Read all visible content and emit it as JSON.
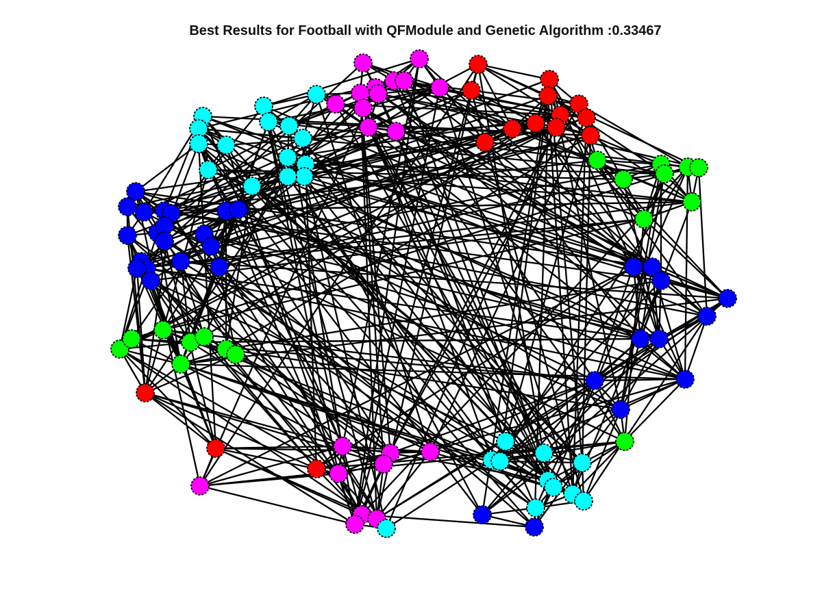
{
  "figure": {
    "title": "Best Results for Football with QFModule and Genetic Algorithm :0.33467"
  },
  "colors": {
    "red": "#ff0000",
    "magenta": "#ff00ff",
    "cyan": "#00ffff",
    "green": "#00ff00",
    "blue": "#0000ff",
    "edge": "#000000"
  },
  "nodes": [
    {
      "id": 0,
      "community": "magenta"
    },
    {
      "id": 1,
      "community": "magenta"
    },
    {
      "id": 2,
      "community": "magenta"
    },
    {
      "id": 3,
      "community": "magenta"
    },
    {
      "id": 4,
      "community": "magenta"
    },
    {
      "id": 5,
      "community": "magenta"
    },
    {
      "id": 6,
      "community": "magenta"
    },
    {
      "id": 7,
      "community": "magenta"
    },
    {
      "id": 8,
      "community": "magenta"
    },
    {
      "id": 9,
      "community": "magenta"
    },
    {
      "id": 10,
      "community": "magenta"
    },
    {
      "id": 11,
      "community": "magenta"
    },
    {
      "id": 12,
      "community": "red"
    },
    {
      "id": 13,
      "community": "red"
    },
    {
      "id": 14,
      "community": "red"
    },
    {
      "id": 15,
      "community": "red"
    },
    {
      "id": 16,
      "community": "red"
    },
    {
      "id": 17,
      "community": "red"
    },
    {
      "id": 18,
      "community": "red"
    },
    {
      "id": 19,
      "community": "red"
    },
    {
      "id": 20,
      "community": "red"
    },
    {
      "id": 21,
      "community": "red"
    },
    {
      "id": 22,
      "community": "red"
    },
    {
      "id": 23,
      "community": "red"
    },
    {
      "id": 24,
      "community": "cyan"
    },
    {
      "id": 25,
      "community": "cyan"
    },
    {
      "id": 26,
      "community": "cyan"
    },
    {
      "id": 27,
      "community": "cyan"
    },
    {
      "id": 28,
      "community": "cyan"
    },
    {
      "id": 29,
      "community": "cyan"
    },
    {
      "id": 30,
      "community": "cyan"
    },
    {
      "id": 31,
      "community": "cyan"
    },
    {
      "id": 32,
      "community": "cyan"
    },
    {
      "id": 33,
      "community": "cyan"
    },
    {
      "id": 34,
      "community": "cyan"
    },
    {
      "id": 35,
      "community": "cyan"
    },
    {
      "id": 36,
      "community": "cyan"
    },
    {
      "id": 37,
      "community": "cyan"
    },
    {
      "id": 38,
      "community": "cyan"
    },
    {
      "id": 39,
      "community": "green"
    },
    {
      "id": 40,
      "community": "green"
    },
    {
      "id": 41,
      "community": "green"
    },
    {
      "id": 42,
      "community": "green"
    },
    {
      "id": 43,
      "community": "green"
    },
    {
      "id": 44,
      "community": "green"
    },
    {
      "id": 45,
      "community": "green"
    },
    {
      "id": 46,
      "community": "green"
    },
    {
      "id": 47,
      "community": "blue"
    },
    {
      "id": 48,
      "community": "blue"
    },
    {
      "id": 49,
      "community": "blue"
    },
    {
      "id": 50,
      "community": "blue"
    },
    {
      "id": 51,
      "community": "blue"
    },
    {
      "id": 52,
      "community": "blue"
    },
    {
      "id": 53,
      "community": "blue"
    },
    {
      "id": 54,
      "community": "blue"
    },
    {
      "id": 55,
      "community": "blue"
    },
    {
      "id": 56,
      "community": "blue"
    },
    {
      "id": 57,
      "community": "blue"
    },
    {
      "id": 58,
      "community": "blue"
    },
    {
      "id": 59,
      "community": "blue"
    },
    {
      "id": 60,
      "community": "blue"
    },
    {
      "id": 61,
      "community": "blue"
    },
    {
      "id": 62,
      "community": "blue"
    },
    {
      "id": 63,
      "community": "blue"
    },
    {
      "id": 64,
      "community": "blue"
    },
    {
      "id": 65,
      "community": "blue"
    },
    {
      "id": 66,
      "community": "blue"
    },
    {
      "id": 67,
      "community": "blue"
    },
    {
      "id": 68,
      "community": "blue"
    },
    {
      "id": 69,
      "community": "blue"
    },
    {
      "id": 70,
      "community": "blue"
    },
    {
      "id": 71,
      "community": "blue"
    },
    {
      "id": 72,
      "community": "blue"
    },
    {
      "id": 73,
      "community": "blue"
    },
    {
      "id": 74,
      "community": "blue"
    },
    {
      "id": 75,
      "community": "blue"
    },
    {
      "id": 76,
      "community": "green"
    },
    {
      "id": 77,
      "community": "green"
    },
    {
      "id": 78,
      "community": "green"
    },
    {
      "id": 79,
      "community": "green"
    },
    {
      "id": 80,
      "community": "green"
    },
    {
      "id": 81,
      "community": "green"
    },
    {
      "id": 82,
      "community": "green"
    },
    {
      "id": 83,
      "community": "green"
    },
    {
      "id": 84,
      "community": "green"
    },
    {
      "id": 85,
      "community": "red"
    },
    {
      "id": 86,
      "community": "red"
    },
    {
      "id": 87,
      "community": "red"
    },
    {
      "id": 88,
      "community": "magenta"
    },
    {
      "id": 89,
      "community": "magenta"
    },
    {
      "id": 90,
      "community": "magenta"
    },
    {
      "id": 91,
      "community": "magenta"
    },
    {
      "id": 92,
      "community": "magenta"
    },
    {
      "id": 93,
      "community": "magenta"
    },
    {
      "id": 94,
      "community": "magenta"
    },
    {
      "id": 95,
      "community": "magenta"
    },
    {
      "id": 96,
      "community": "magenta"
    },
    {
      "id": 97,
      "community": "cyan"
    },
    {
      "id": 98,
      "community": "cyan"
    },
    {
      "id": 99,
      "community": "cyan"
    },
    {
      "id": 100,
      "community": "cyan"
    },
    {
      "id": 101,
      "community": "cyan"
    },
    {
      "id": 102,
      "community": "cyan"
    },
    {
      "id": 103,
      "community": "cyan"
    },
    {
      "id": 104,
      "community": "cyan"
    },
    {
      "id": 105,
      "community": "cyan"
    },
    {
      "id": 106,
      "community": "cyan"
    },
    {
      "id": 107,
      "community": "cyan"
    },
    {
      "id": 108,
      "community": "blue"
    },
    {
      "id": 109,
      "community": "blue"
    },
    {
      "id": 110,
      "community": "blue"
    },
    {
      "id": 111,
      "community": "blue"
    },
    {
      "id": 112,
      "community": "blue"
    },
    {
      "id": 113,
      "community": "blue"
    },
    {
      "id": 114,
      "community": "blue"
    }
  ]
}
